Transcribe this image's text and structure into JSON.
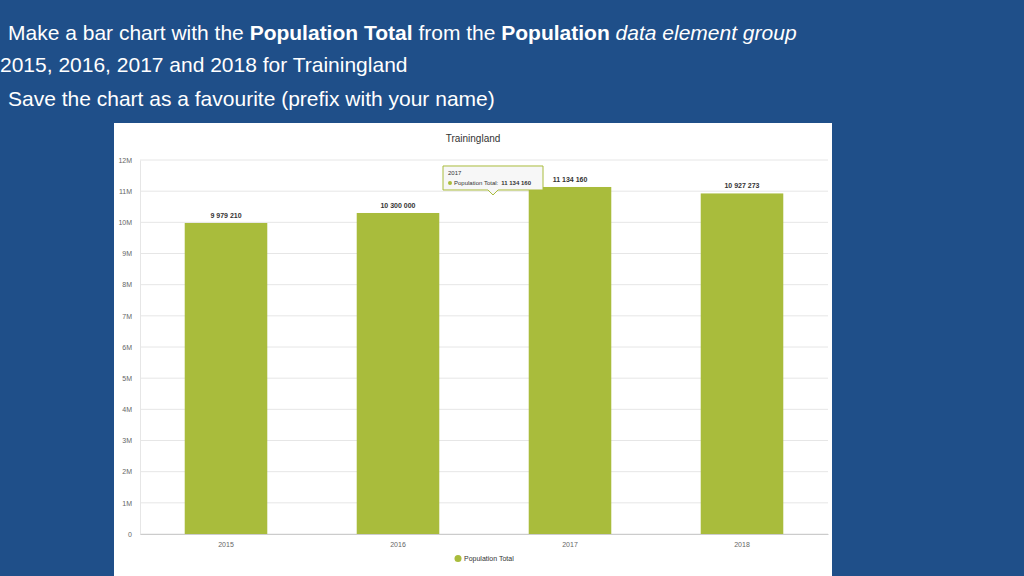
{
  "slide": {
    "lines": [
      [
        {
          "text": "Make a bar chart with the "
        },
        {
          "text": "Population Total",
          "bold": true
        },
        {
          "text": " from the "
        },
        {
          "text": "Population",
          "bold": true
        },
        {
          "text": " data element group",
          "italic": true
        }
      ],
      [
        {
          "text": "2015, 2016, 2017 and 2018 for Trainingland"
        }
      ],
      [
        {
          "text": "Save the chart as a favourite (prefix with your name)"
        }
      ]
    ]
  },
  "chart_data": {
    "type": "bar",
    "title": "Trainingland",
    "categories": [
      "2015",
      "2016",
      "2017",
      "2018"
    ],
    "series": [
      {
        "name": "Population Total",
        "color": "#a9bc3c",
        "values": [
          9979210,
          10300000,
          11134160,
          10927273
        ],
        "value_labels": [
          "9 979 210",
          "10 300 000",
          "11 134 160",
          "10 927 273"
        ]
      }
    ],
    "ylim": [
      0,
      12000000
    ],
    "yticks": [
      0,
      {
        "value": 1000000,
        "label": "1M"
      },
      {
        "value": 2000000,
        "label": "2M"
      },
      {
        "value": 3000000,
        "label": "3M"
      },
      {
        "value": 4000000,
        "label": "4M"
      },
      {
        "value": 5000000,
        "label": "5M"
      },
      {
        "value": 6000000,
        "label": "6M"
      },
      {
        "value": 7000000,
        "label": "7M"
      },
      {
        "value": 8000000,
        "label": "8M"
      },
      {
        "value": 9000000,
        "label": "9M"
      },
      {
        "value": 10000000,
        "label": "10M"
      },
      {
        "value": 11000000,
        "label": "11M"
      },
      {
        "value": 12000000,
        "label": "12M"
      }
    ],
    "grid": true,
    "legend": "bottom",
    "data_labels": true,
    "annotations": [
      {
        "category": "2017",
        "title": "2017",
        "series_label": "Population Total:",
        "value_label": "11 134 160"
      }
    ]
  }
}
